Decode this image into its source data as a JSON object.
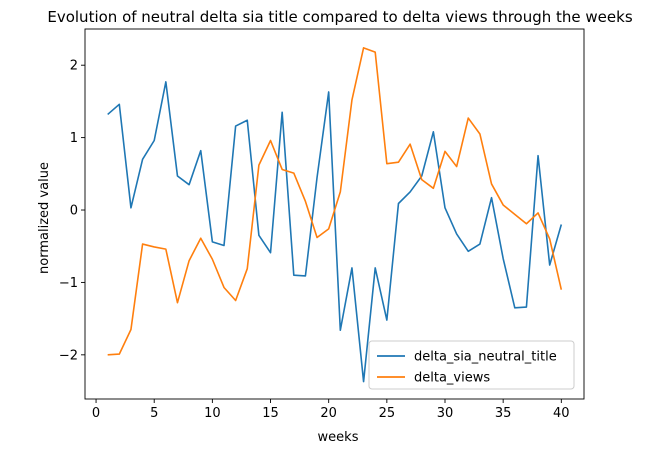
{
  "chart_data": {
    "type": "line",
    "title": "Evolution of neutral delta sia title compared to delta views through the weeks",
    "xlabel": "weeks",
    "ylabel": "normalized value",
    "xlim": [
      -0.95,
      41.95
    ],
    "ylim": [
      -2.61,
      2.5
    ],
    "xticks": [
      0,
      5,
      10,
      15,
      20,
      25,
      30,
      35,
      40
    ],
    "yticks": [
      -2,
      -1,
      0,
      1,
      2
    ],
    "ytick_labels": [
      "−2",
      "−1",
      "0",
      "1",
      "2"
    ],
    "grid": false,
    "legend_position": "lower right",
    "x": [
      1,
      2,
      3,
      4,
      5,
      6,
      7,
      8,
      9,
      10,
      11,
      12,
      13,
      14,
      15,
      16,
      17,
      18,
      19,
      20,
      21,
      22,
      23,
      24,
      25,
      26,
      27,
      28,
      29,
      30,
      31,
      32,
      33,
      34,
      35,
      36,
      37,
      38,
      39,
      40
    ],
    "series": [
      {
        "name": "delta_sia_neutral_title",
        "color": "#1f77b4",
        "values": [
          1.32,
          1.46,
          0.03,
          0.7,
          0.96,
          1.77,
          0.47,
          0.35,
          0.82,
          -0.44,
          -0.49,
          1.16,
          1.24,
          -0.35,
          -0.59,
          1.35,
          -0.9,
          -0.91,
          0.45,
          1.63,
          -1.66,
          -0.8,
          -2.37,
          -0.8,
          -1.52,
          0.09,
          0.25,
          0.47,
          1.08,
          0.03,
          -0.33,
          -0.57,
          -0.47,
          0.17,
          -0.67,
          -1.35,
          -1.34,
          0.75,
          -0.76,
          -0.2
        ]
      },
      {
        "name": "delta_views",
        "color": "#ff7f0e",
        "values": [
          -2.0,
          -1.99,
          -1.65,
          -0.47,
          -0.51,
          -0.54,
          -1.28,
          -0.7,
          -0.39,
          -0.68,
          -1.07,
          -1.25,
          -0.81,
          0.62,
          0.96,
          0.56,
          0.51,
          0.12,
          -0.38,
          -0.26,
          0.25,
          1.52,
          2.24,
          2.18,
          0.64,
          0.66,
          0.91,
          0.42,
          0.3,
          0.81,
          0.6,
          1.27,
          1.05,
          0.36,
          0.07,
          -0.06,
          -0.19,
          -0.04,
          -0.4,
          -1.1
        ]
      }
    ]
  }
}
